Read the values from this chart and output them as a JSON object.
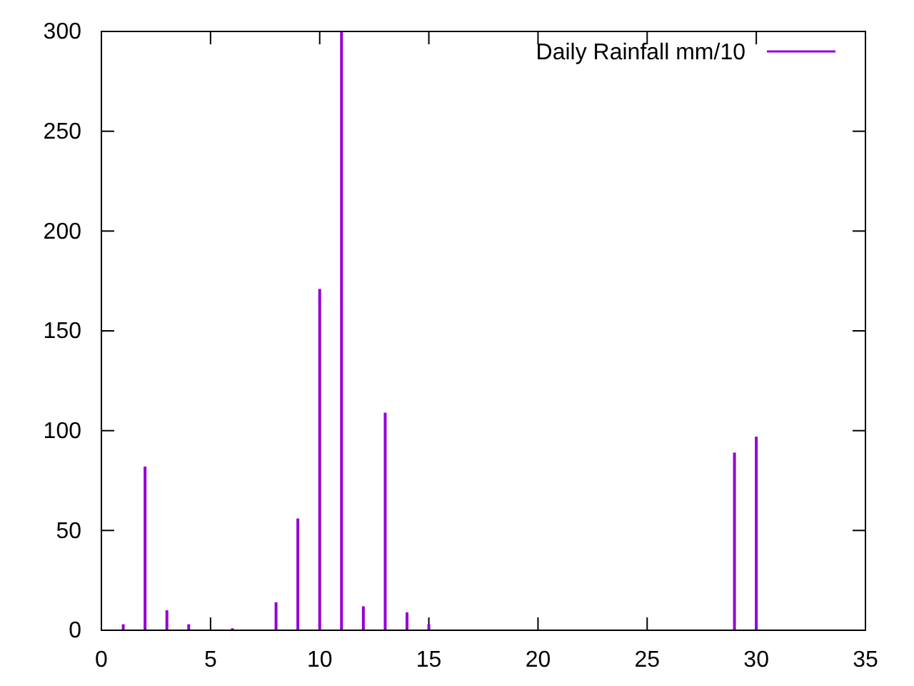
{
  "chart_data": {
    "type": "bar",
    "x": [
      1,
      2,
      3,
      4,
      6,
      8,
      9,
      10,
      11,
      12,
      13,
      14,
      15,
      29,
      30
    ],
    "series": [
      {
        "name": "Daily Rainfall mm/10",
        "color": "#9400d3",
        "values": [
          3,
          82,
          10,
          3,
          1,
          14,
          56,
          171,
          300,
          12,
          109,
          9,
          3,
          89,
          97
        ]
      }
    ],
    "xlim": [
      0,
      35
    ],
    "xticks": [
      0,
      5,
      10,
      15,
      20,
      25,
      30,
      35
    ],
    "ylim": [
      0,
      300
    ],
    "yticks": [
      0,
      50,
      100,
      150,
      200,
      250,
      300
    ],
    "grid": false,
    "legend": "top right"
  }
}
